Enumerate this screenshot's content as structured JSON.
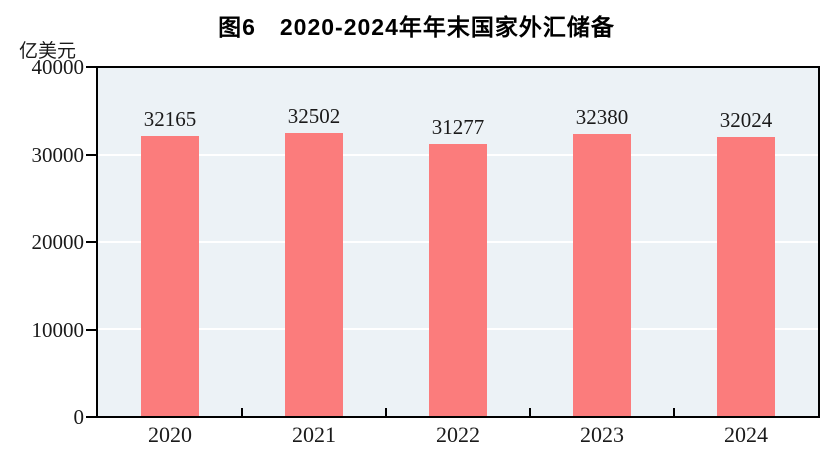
{
  "figure": {
    "title": "图6　2020-2024年年末国家外汇储备",
    "unit_label": "亿美元"
  },
  "chart_data": {
    "type": "bar",
    "title": "图6　2020-2024年年末国家外汇储备",
    "xlabel": "",
    "ylabel": "亿美元",
    "categories": [
      "2020",
      "2021",
      "2022",
      "2023",
      "2024"
    ],
    "values": [
      32165,
      32502,
      31277,
      32380,
      32024
    ],
    "data_labels": [
      "32165",
      "32502",
      "31277",
      "32380",
      "32024"
    ],
    "ylim": [
      0,
      40000
    ],
    "yticks": [
      0,
      10000,
      20000,
      30000,
      40000
    ],
    "ytick_labels": [
      "0",
      "10000",
      "20000",
      "30000",
      "40000"
    ],
    "grid": true,
    "legend": "none",
    "colors": {
      "bar_fill": "#FB7C7C",
      "plot_background": "#ECF2F6",
      "gridline": "#FFFFFF",
      "axis": "#000000",
      "text": "#1A1A1A"
    }
  }
}
